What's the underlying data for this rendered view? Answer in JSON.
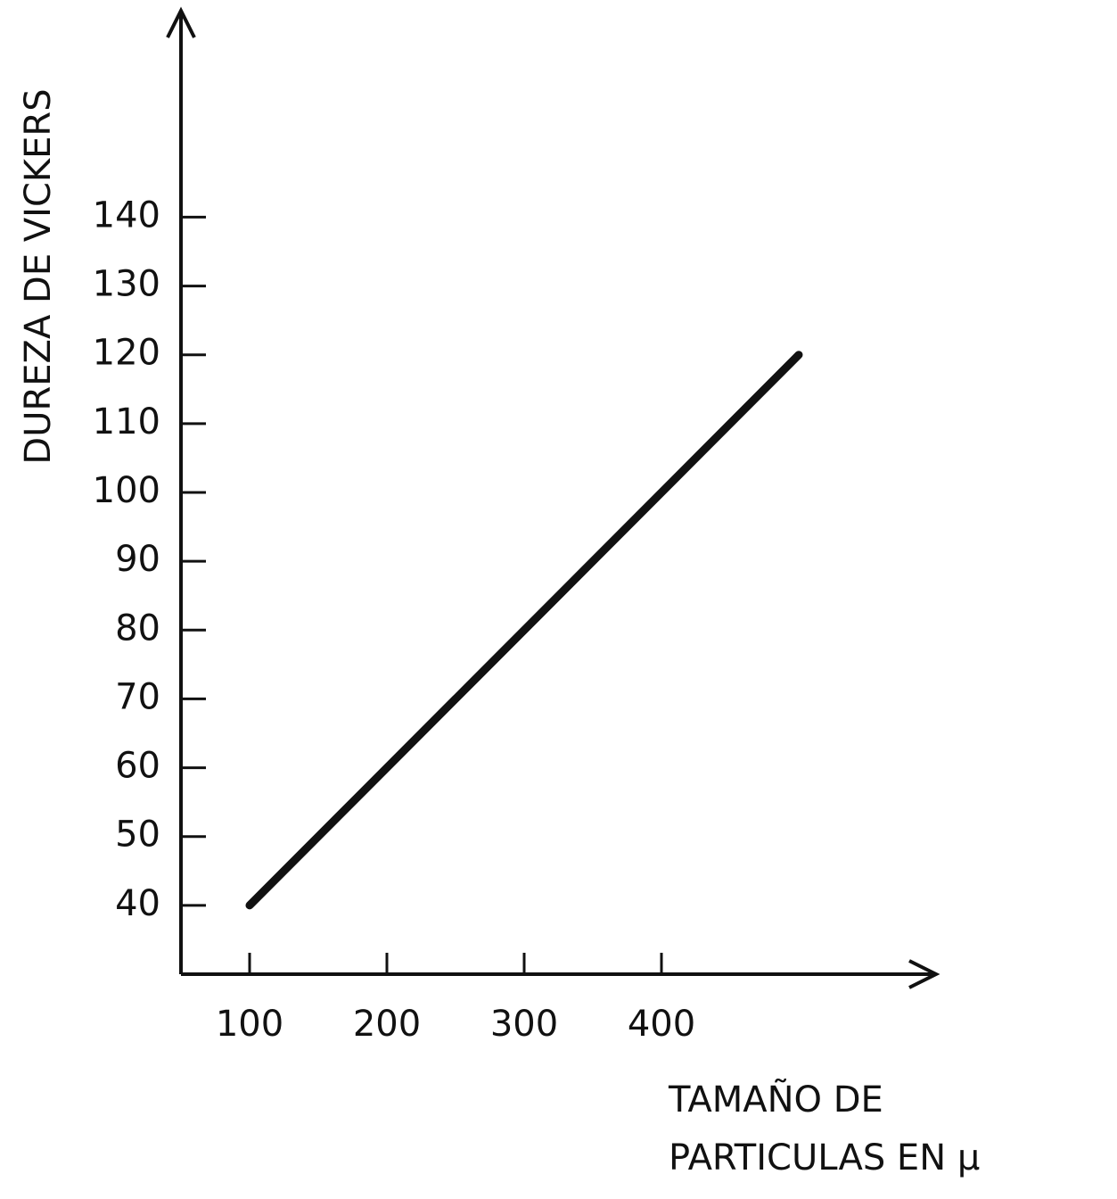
{
  "chart_data": {
    "type": "line",
    "y_label": "DUREZA DE VICKERS",
    "x_label": [
      "TAMAÑO DE",
      "PARTICULAS EN μ"
    ],
    "x": [
      100,
      500
    ],
    "values": [
      40,
      120
    ],
    "color": "#111111",
    "xlim": [
      50,
      600
    ],
    "xticks": [
      100,
      200,
      300,
      400
    ],
    "ylim": [
      30,
      170
    ],
    "yticks": [
      40,
      50,
      60,
      70,
      80,
      90,
      100,
      110,
      120,
      130,
      140
    ],
    "grid": false
  }
}
